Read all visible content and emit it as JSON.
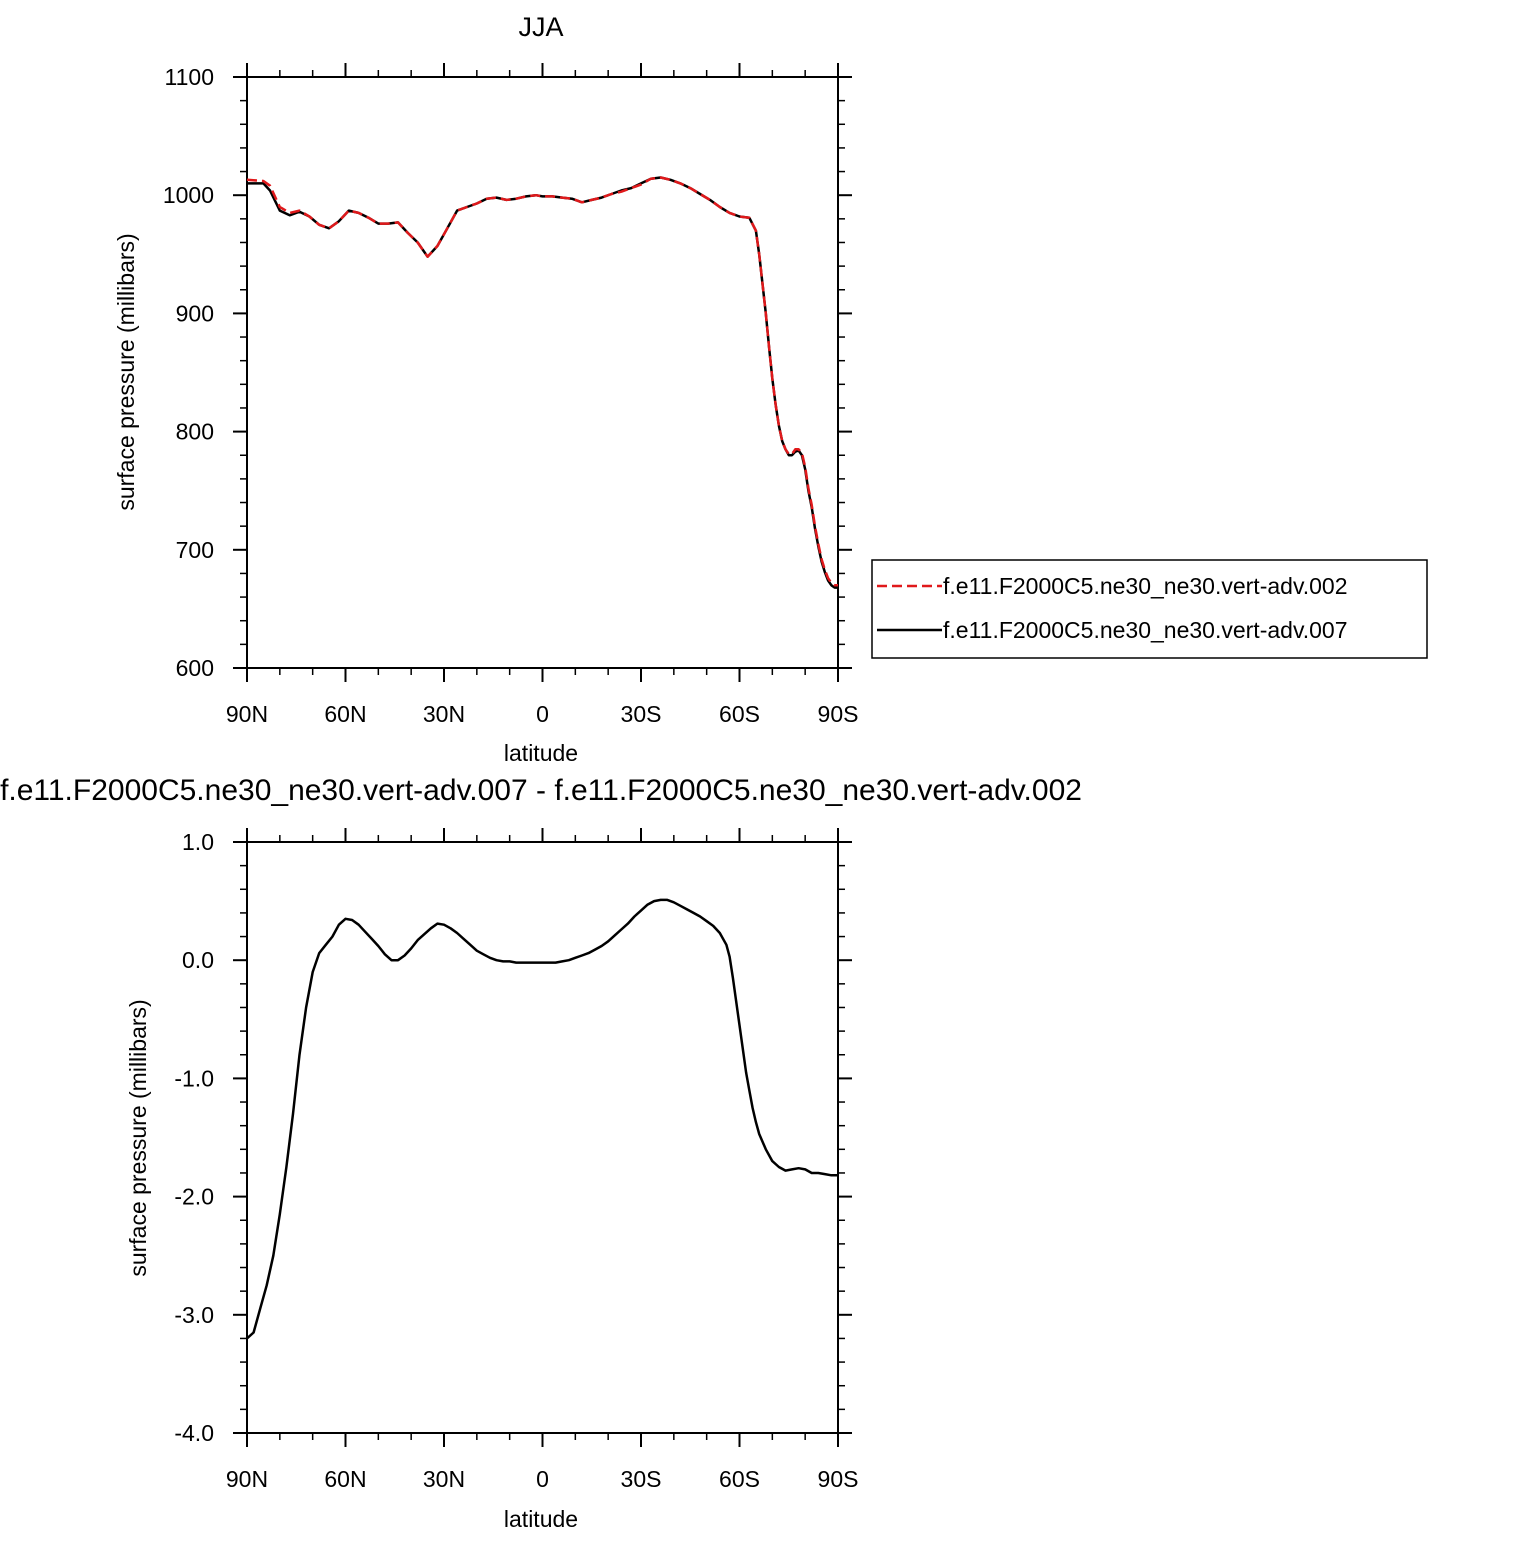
{
  "chart_data": [
    {
      "type": "line",
      "title": "JJA",
      "xlabel": "latitude",
      "ylabel": "surface pressure (millibars)",
      "xlim": [
        90,
        -90
      ],
      "ylim": [
        600,
        1100
      ],
      "x_ticks": [
        {
          "value": 90,
          "label": "90N"
        },
        {
          "value": 60,
          "label": "60N"
        },
        {
          "value": 30,
          "label": "30N"
        },
        {
          "value": 0,
          "label": "0"
        },
        {
          "value": -30,
          "label": "30S"
        },
        {
          "value": -60,
          "label": "60S"
        },
        {
          "value": -90,
          "label": "90S"
        }
      ],
      "y_ticks": [
        {
          "value": 1100,
          "label": "1100"
        },
        {
          "value": 1000,
          "label": "1000"
        },
        {
          "value": 900,
          "label": "900"
        },
        {
          "value": 800,
          "label": "800"
        },
        {
          "value": 700,
          "label": "700"
        },
        {
          "value": 600,
          "label": "600"
        }
      ],
      "legend_position": "right",
      "series": [
        {
          "name": "f.e11.F2000C5.ne30_ne30.vert-adv.002",
          "color": "#e0191b",
          "dash": "dashed",
          "x": [
            90,
            85,
            83,
            80,
            77,
            74,
            71,
            68,
            65,
            62,
            59,
            56,
            53,
            50,
            47,
            44,
            41,
            38,
            35,
            32,
            29,
            26,
            23,
            20,
            17,
            14,
            11,
            8,
            5,
            2,
            0,
            -3,
            -6,
            -9,
            -12,
            -15,
            -18,
            -21,
            -24,
            -27,
            -30,
            -33,
            -36,
            -39,
            -42,
            -45,
            -48,
            -51,
            -54,
            -57,
            -60,
            -63,
            -65,
            -66,
            -67,
            -68,
            -69,
            -70,
            -71,
            -72,
            -73,
            -74,
            -75,
            -76,
            -77,
            -78,
            -79,
            -80,
            -81,
            -82,
            -83,
            -84,
            -85,
            -86,
            -87,
            -88,
            -89,
            -90
          ],
          "y": [
            1013,
            1012,
            1008,
            990,
            985,
            987,
            982,
            975,
            972,
            978,
            987,
            985,
            981,
            976,
            976,
            977,
            968,
            960,
            948,
            957,
            972,
            987,
            990,
            993,
            997,
            998,
            996,
            997,
            999,
            1000,
            999,
            999,
            998,
            997,
            994,
            996,
            998,
            1001,
            1003,
            1006,
            1009,
            1014,
            1015,
            1013,
            1010,
            1006,
            1001,
            996,
            990,
            985,
            982,
            981,
            970,
            950,
            925,
            900,
            872,
            845,
            823,
            805,
            792,
            785,
            781,
            781,
            785,
            785,
            782,
            770,
            752,
            738,
            720,
            705,
            692,
            683,
            676,
            672,
            670,
            670
          ]
        },
        {
          "name": "f.e11.F2000C5.ne30_ne30.vert-adv.007",
          "color": "#000000",
          "dash": "solid",
          "x": [
            90,
            85,
            83,
            80,
            77,
            74,
            71,
            68,
            65,
            62,
            59,
            56,
            53,
            50,
            47,
            44,
            41,
            38,
            35,
            32,
            29,
            26,
            23,
            20,
            17,
            14,
            11,
            8,
            5,
            2,
            0,
            -3,
            -6,
            -9,
            -12,
            -15,
            -18,
            -21,
            -24,
            -27,
            -30,
            -33,
            -36,
            -39,
            -42,
            -45,
            -48,
            -51,
            -54,
            -57,
            -60,
            -63,
            -65,
            -66,
            -67,
            -68,
            -69,
            -70,
            -71,
            -72,
            -73,
            -74,
            -75,
            -76,
            -77,
            -78,
            -79,
            -80,
            -81,
            -82,
            -83,
            -84,
            -85,
            -86,
            -87,
            -88,
            -89,
            -90
          ],
          "y": [
            1010,
            1010,
            1004,
            987,
            983,
            986,
            982,
            975,
            972,
            978,
            987,
            985,
            981,
            976,
            976,
            977,
            968,
            960,
            948,
            957,
            972,
            987,
            990,
            993,
            997,
            998,
            996,
            997,
            999,
            1000,
            999,
            999,
            998,
            997,
            994,
            996,
            998,
            1001,
            1004,
            1006,
            1010,
            1014,
            1015,
            1013,
            1010,
            1006,
            1001,
            996,
            990,
            985,
            982,
            981,
            970,
            950,
            925,
            900,
            872,
            845,
            823,
            805,
            792,
            785,
            780,
            780,
            783,
            784,
            780,
            768,
            750,
            736,
            718,
            703,
            690,
            681,
            674,
            670,
            668,
            668
          ]
        }
      ]
    },
    {
      "type": "line",
      "title": "f.e11.F2000C5.ne30_ne30.vert-adv.007 - f.e11.F2000C5.ne30_ne30.vert-adv.002",
      "xlabel": "latitude",
      "ylabel": "surface pressure (millibars)",
      "xlim": [
        90,
        -90
      ],
      "ylim": [
        -4.0,
        1.0
      ],
      "x_ticks": [
        {
          "value": 90,
          "label": "90N"
        },
        {
          "value": 60,
          "label": "60N"
        },
        {
          "value": 30,
          "label": "30N"
        },
        {
          "value": 0,
          "label": "0"
        },
        {
          "value": -30,
          "label": "30S"
        },
        {
          "value": -60,
          "label": "60S"
        },
        {
          "value": -90,
          "label": "90S"
        }
      ],
      "y_ticks": [
        {
          "value": 1.0,
          "label": "1.0"
        },
        {
          "value": 0.0,
          "label": "0.0"
        },
        {
          "value": -1.0,
          "label": "-1.0"
        },
        {
          "value": -2.0,
          "label": "-2.0"
        },
        {
          "value": -3.0,
          "label": "-3.0"
        },
        {
          "value": -4.0,
          "label": "-4.0"
        }
      ],
      "series": [
        {
          "color": "#000000",
          "dash": "solid",
          "x": [
            90,
            88,
            86,
            84,
            82,
            80,
            78,
            76,
            74,
            72,
            70,
            68,
            66,
            64,
            62,
            60,
            58,
            56,
            54,
            52,
            50,
            48,
            46,
            44,
            42,
            40,
            38,
            36,
            34,
            32,
            30,
            28,
            26,
            24,
            22,
            20,
            18,
            16,
            14,
            12,
            10,
            8,
            6,
            4,
            2,
            0,
            -2,
            -4,
            -6,
            -8,
            -10,
            -12,
            -14,
            -16,
            -18,
            -20,
            -22,
            -24,
            -26,
            -28,
            -30,
            -32,
            -34,
            -36,
            -38,
            -40,
            -42,
            -44,
            -46,
            -48,
            -50,
            -52,
            -54,
            -56,
            -57,
            -58,
            -59,
            -60,
            -61,
            -62,
            -63,
            -64,
            -65,
            -66,
            -68,
            -70,
            -72,
            -74,
            -76,
            -78,
            -80,
            -82,
            -84,
            -86,
            -88,
            -90
          ],
          "y": [
            -3.2,
            -3.15,
            -2.95,
            -2.75,
            -2.5,
            -2.15,
            -1.75,
            -1.3,
            -0.8,
            -0.4,
            -0.1,
            0.06,
            0.13,
            0.2,
            0.3,
            0.35,
            0.34,
            0.3,
            0.24,
            0.18,
            0.12,
            0.05,
            0.0,
            0.0,
            0.04,
            0.1,
            0.17,
            0.22,
            0.27,
            0.31,
            0.3,
            0.27,
            0.23,
            0.18,
            0.13,
            0.08,
            0.05,
            0.02,
            0.0,
            -0.01,
            -0.01,
            -0.02,
            -0.02,
            -0.02,
            -0.02,
            -0.02,
            -0.02,
            -0.02,
            -0.01,
            0.0,
            0.02,
            0.04,
            0.06,
            0.09,
            0.12,
            0.16,
            0.21,
            0.26,
            0.31,
            0.37,
            0.42,
            0.47,
            0.5,
            0.51,
            0.51,
            0.49,
            0.46,
            0.43,
            0.4,
            0.37,
            0.33,
            0.29,
            0.23,
            0.13,
            0.03,
            -0.15,
            -0.35,
            -0.55,
            -0.75,
            -0.95,
            -1.1,
            -1.25,
            -1.37,
            -1.47,
            -1.6,
            -1.7,
            -1.75,
            -1.78,
            -1.77,
            -1.76,
            -1.77,
            -1.8,
            -1.8,
            -1.81,
            -1.82,
            -1.82
          ]
        }
      ]
    }
  ]
}
